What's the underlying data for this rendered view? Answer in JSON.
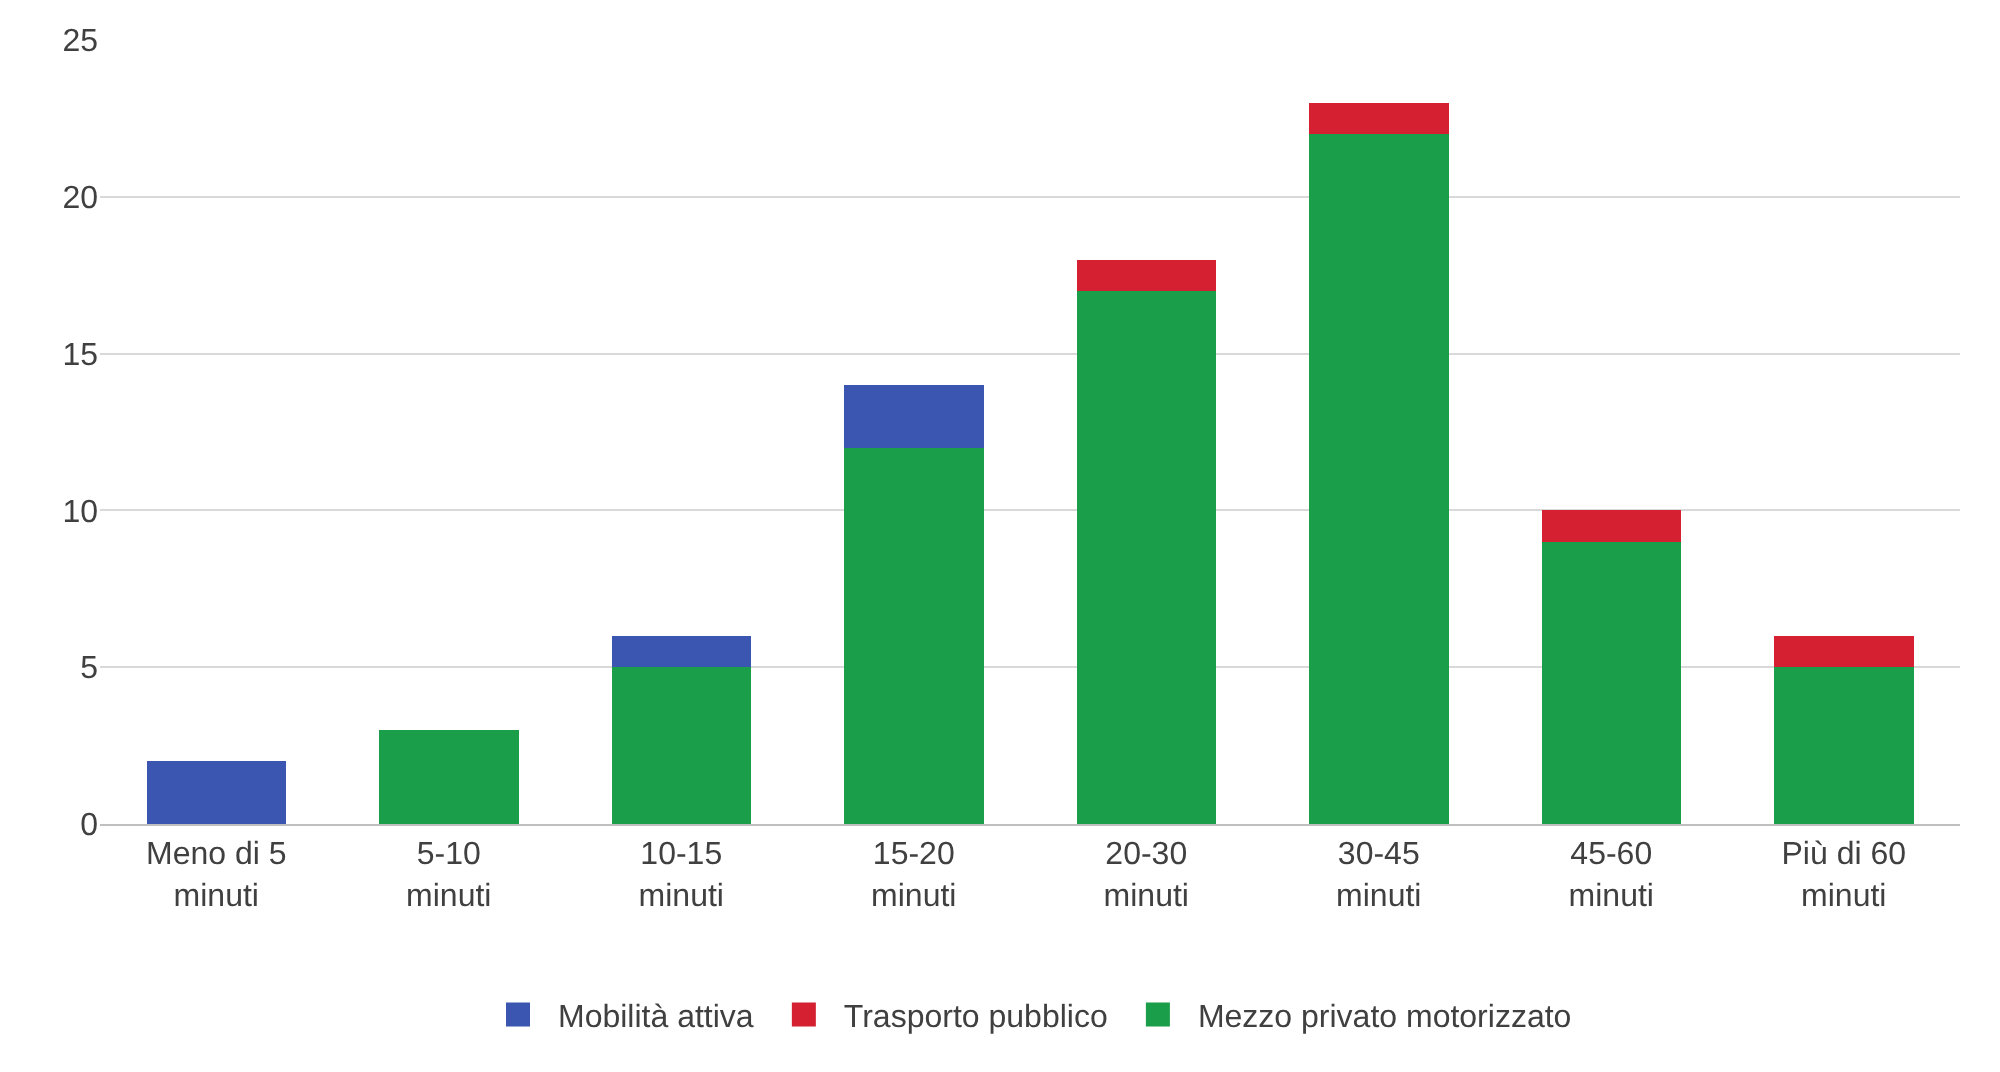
{
  "chart_data": {
    "type": "bar",
    "stacked": true,
    "categories": [
      "Meno di 5\nminuti",
      "5-10\nminuti",
      "10-15\nminuti",
      "15-20\nminuti",
      "20-30\nminuti",
      "30-45\nminuti",
      "45-60\nminuti",
      "Più di 60\nminuti"
    ],
    "series": [
      {
        "name": "Mezzo privato motorizzato",
        "color": "#1a9e4a",
        "values": [
          null,
          3,
          5,
          12,
          17,
          22,
          9,
          5
        ]
      },
      {
        "name": "Trasporto pubblico",
        "color": "#d42030",
        "values": [
          null,
          null,
          null,
          null,
          1,
          1,
          1,
          1
        ]
      },
      {
        "name": "Mobilità attiva",
        "color": "#3a56b0",
        "values": [
          2,
          null,
          1,
          2,
          null,
          null,
          null,
          null
        ]
      }
    ],
    "ylim": [
      0,
      25
    ],
    "yticks": [
      0,
      5,
      10,
      15,
      20,
      25
    ],
    "grid": "y",
    "legend": "bottom"
  }
}
